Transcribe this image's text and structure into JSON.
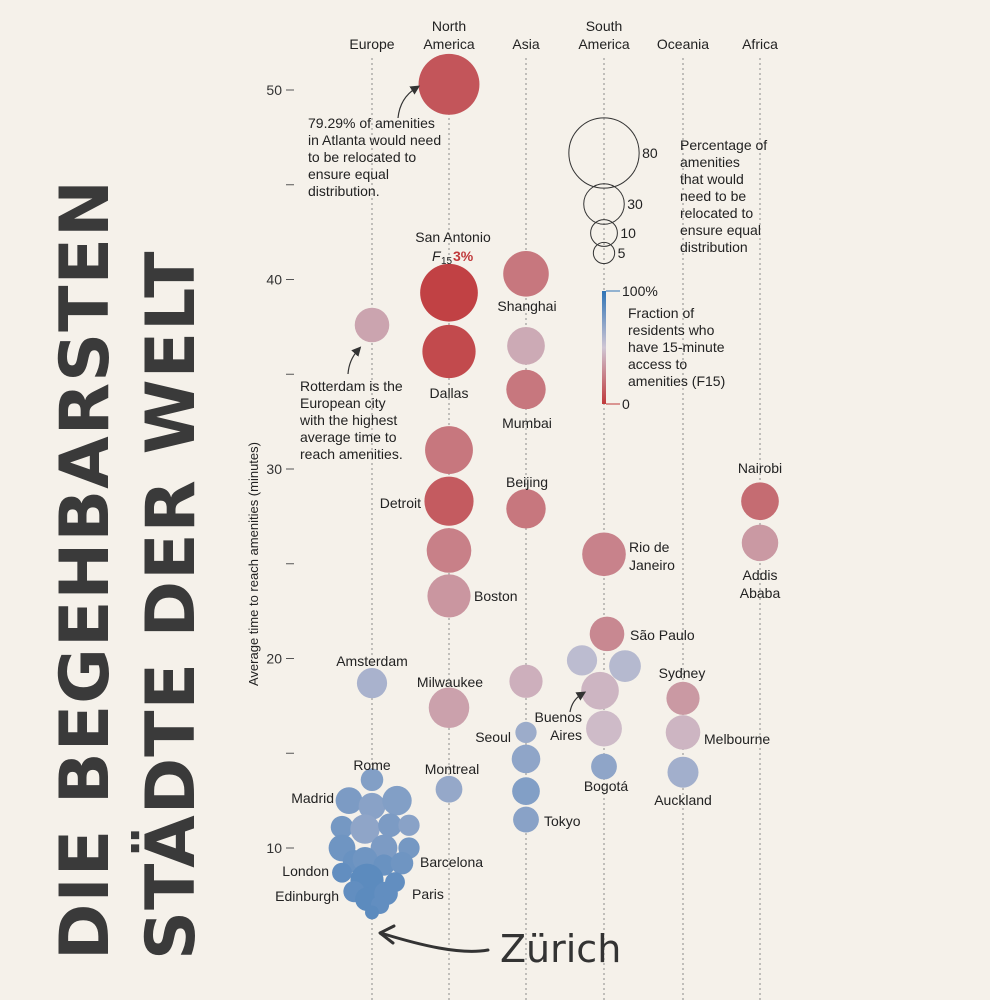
{
  "headline": {
    "line1": "DIE BEGEHBARSTEN",
    "line2": "STÄDTE DER WELT"
  },
  "chart_data": {
    "type": "scatter",
    "ylabel": "Average time to reach amenities (minutes)",
    "ylim": [
      7,
      53
    ],
    "yticks": [
      10,
      15,
      20,
      25,
      30,
      35,
      40,
      45,
      50
    ],
    "ytick_labels": {
      "10": "10",
      "20": "20",
      "30": "30",
      "40": "40",
      "50": "50"
    },
    "categories": [
      "Europe",
      "North America",
      "Asia",
      "South America",
      "Oceania",
      "Africa"
    ],
    "category_labels": [
      [
        "Europe"
      ],
      [
        "North",
        "America"
      ],
      [
        "Asia"
      ],
      [
        "South",
        "America"
      ],
      [
        "Oceania"
      ],
      [
        "Africa"
      ]
    ],
    "size_legend": {
      "title": [
        "Percentage of",
        "amenities",
        "that would",
        "need to be",
        "relocated to",
        "ensure equal",
        "distribution"
      ],
      "values": [
        80,
        30,
        10,
        5
      ]
    },
    "color_legend": {
      "title": [
        "Fraction of",
        "residents who",
        "have 15-minute",
        "access to",
        "amenities (F15)"
      ],
      "max_label": "100%",
      "min_label": "0",
      "colors": [
        "#2f74b6",
        "#cfc6d4",
        "#c0393b"
      ]
    },
    "annotations": {
      "atlanta": [
        "79.29% of amenities",
        "in Atlanta would need",
        "to be relocated to",
        "ensure equal",
        "distribution."
      ],
      "rotterdam": [
        "Rotterdam is the",
        "European city",
        "with the highest",
        "average time to",
        "reach amenities."
      ],
      "san_antonio": "San Antonio",
      "f15_prefix": "F",
      "f15_sub": "15",
      "f15_value": "3%",
      "zurich": "Zürich"
    },
    "points": [
      {
        "cat": 1,
        "dx": 0,
        "y": 50.3,
        "f15": 0.1,
        "pct": 79.29,
        "name": "",
        "label_dx": 0,
        "label_dy": 0
      },
      {
        "cat": 1,
        "dx": 0,
        "y": 39.3,
        "f15": 0.03,
        "pct": 70,
        "name": "",
        "label_dx": 0,
        "label_dy": 0
      },
      {
        "cat": 1,
        "dx": 0,
        "y": 36.2,
        "f15": 0.06,
        "pct": 58,
        "name": "Dallas",
        "label_dx": 0,
        "label_dy": 0
      },
      {
        "cat": 1,
        "dx": 0,
        "y": 31.0,
        "f15": 0.22,
        "pct": 45,
        "name": "",
        "label_dx": 0,
        "label_dy": 0
      },
      {
        "cat": 1,
        "dx": 0,
        "y": 28.3,
        "f15": 0.12,
        "pct": 48,
        "name": "Detroit",
        "label_dx": 0,
        "label_dy": 0
      },
      {
        "cat": 1,
        "dx": 0,
        "y": 25.7,
        "f15": 0.25,
        "pct": 38,
        "name": "",
        "label_dx": 0,
        "label_dy": 0
      },
      {
        "cat": 1,
        "dx": 0,
        "y": 23.3,
        "f15": 0.33,
        "pct": 35,
        "name": "Boston",
        "label_dx": 0,
        "label_dy": 0
      },
      {
        "cat": 1,
        "dx": 0,
        "y": 17.4,
        "f15": 0.37,
        "pct": 30,
        "name": "Milwaukee",
        "label_dx": 0,
        "label_dy": 0
      },
      {
        "cat": 1,
        "dx": 0,
        "y": 13.1,
        "f15": 0.68,
        "pct": 10,
        "name": "Montreal",
        "label_dx": 0,
        "label_dy": 0
      },
      {
        "cat": 0,
        "dx": 0,
        "y": 37.6,
        "f15": 0.38,
        "pct": 20,
        "name": "",
        "label_dx": 0,
        "label_dy": 0
      },
      {
        "cat": 0,
        "dx": 0,
        "y": 18.7,
        "f15": 0.62,
        "pct": 14,
        "name": "Amsterdam",
        "label_dx": 0,
        "label_dy": 0
      },
      {
        "cat": 0,
        "dx": 0,
        "y": 13.6,
        "f15": 0.74,
        "pct": 6,
        "name": "Rome",
        "label_dx": 0,
        "label_dy": 0
      },
      {
        "cat": 0,
        "dx": -23,
        "y": 12.5,
        "f15": 0.76,
        "pct": 10,
        "name": "Madrid",
        "label_dx": 0,
        "label_dy": 0
      },
      {
        "cat": 0,
        "dx": 0,
        "y": 12.2,
        "f15": 0.72,
        "pct": 10,
        "name": "",
        "label_dx": 0,
        "label_dy": 0
      },
      {
        "cat": 0,
        "dx": 25,
        "y": 12.5,
        "f15": 0.74,
        "pct": 13,
        "name": "",
        "label_dx": 0,
        "label_dy": 0
      },
      {
        "cat": 0,
        "dx": -30,
        "y": 11.1,
        "f15": 0.78,
        "pct": 6,
        "name": "",
        "label_dx": 0,
        "label_dy": 0
      },
      {
        "cat": 0,
        "dx": -7,
        "y": 11.0,
        "f15": 0.7,
        "pct": 13,
        "name": "",
        "label_dx": 0,
        "label_dy": 0
      },
      {
        "cat": 0,
        "dx": 18,
        "y": 11.2,
        "f15": 0.76,
        "pct": 7,
        "name": "",
        "label_dx": 0,
        "label_dy": 0
      },
      {
        "cat": 0,
        "dx": 37,
        "y": 11.2,
        "f15": 0.72,
        "pct": 5,
        "name": "",
        "label_dx": 0,
        "label_dy": 0
      },
      {
        "cat": 0,
        "dx": -30,
        "y": 10.0,
        "f15": 0.8,
        "pct": 10,
        "name": "",
        "label_dx": 0,
        "label_dy": 0
      },
      {
        "cat": 0,
        "dx": 12,
        "y": 10.0,
        "f15": 0.76,
        "pct": 10,
        "name": "",
        "label_dx": 0,
        "label_dy": 0
      },
      {
        "cat": 0,
        "dx": 37,
        "y": 10.0,
        "f15": 0.78,
        "pct": 5,
        "name": "",
        "label_dx": 0,
        "label_dy": 0
      },
      {
        "cat": 0,
        "dx": -18,
        "y": 9.3,
        "f15": 0.82,
        "pct": 6,
        "name": "",
        "label_dx": 0,
        "label_dy": 0
      },
      {
        "cat": 0,
        "dx": -7,
        "y": 9.4,
        "f15": 0.8,
        "pct": 8,
        "name": "",
        "label_dx": 0,
        "label_dy": 0
      },
      {
        "cat": 0,
        "dx": 12,
        "y": 9.1,
        "f15": 0.82,
        "pct": 5,
        "name": "",
        "label_dx": 0,
        "label_dy": 0
      },
      {
        "cat": 0,
        "dx": 30,
        "y": 9.2,
        "f15": 0.8,
        "pct": 6,
        "name": "Barcelona",
        "label_dx": 0,
        "label_dy": 0
      },
      {
        "cat": 0,
        "dx": -30,
        "y": 8.7,
        "f15": 0.84,
        "pct": 4,
        "name": "London",
        "label_dx": 0,
        "label_dy": 0
      },
      {
        "cat": 0,
        "dx": -5,
        "y": 8.3,
        "f15": 0.86,
        "pct": 18,
        "name": "Edinburgh",
        "label_dx": 0,
        "label_dy": 0
      },
      {
        "cat": 0,
        "dx": 23,
        "y": 8.2,
        "f15": 0.84,
        "pct": 4,
        "name": "Paris",
        "label_dx": 0,
        "label_dy": 0
      },
      {
        "cat": 0,
        "dx": -18,
        "y": 7.7,
        "f15": 0.84,
        "pct": 5,
        "name": "",
        "label_dx": 0,
        "label_dy": 0
      },
      {
        "cat": 0,
        "dx": -5,
        "y": 7.3,
        "f15": 0.86,
        "pct": 7,
        "name": "",
        "label_dx": 0,
        "label_dy": 0
      },
      {
        "cat": 0,
        "dx": 14,
        "y": 7.6,
        "f15": 0.84,
        "pct": 7,
        "name": "",
        "label_dx": 0,
        "label_dy": 0
      },
      {
        "cat": 0,
        "dx": 8,
        "y": 7.0,
        "f15": 0.84,
        "pct": 3,
        "name": "",
        "label_dx": 0,
        "label_dy": 0
      },
      {
        "cat": 0,
        "dx": 0,
        "y": 6.6,
        "f15": 0.86,
        "pct": 1,
        "name": "",
        "label_dx": 0,
        "label_dy": 0
      },
      {
        "cat": 2,
        "dx": 0,
        "y": 40.3,
        "f15": 0.22,
        "pct": 40,
        "name": "Shanghai",
        "label_dx": 0,
        "label_dy": 0
      },
      {
        "cat": 2,
        "dx": 0,
        "y": 36.5,
        "f15": 0.4,
        "pct": 25,
        "name": "",
        "label_dx": 0,
        "label_dy": 0
      },
      {
        "cat": 2,
        "dx": 0,
        "y": 34.2,
        "f15": 0.22,
        "pct": 28,
        "name": "Mumbai",
        "label_dx": 0,
        "label_dy": 0
      },
      {
        "cat": 2,
        "dx": 0,
        "y": 27.9,
        "f15": 0.22,
        "pct": 28,
        "name": "Beijing",
        "label_dx": 0,
        "label_dy": 0
      },
      {
        "cat": 2,
        "dx": 0,
        "y": 18.8,
        "f15": 0.42,
        "pct": 18,
        "name": "",
        "label_dx": 0,
        "label_dy": 0
      },
      {
        "cat": 2,
        "dx": 0,
        "y": 16.1,
        "f15": 0.66,
        "pct": 5,
        "name": "Seoul",
        "label_dx": 0,
        "label_dy": 0
      },
      {
        "cat": 2,
        "dx": 0,
        "y": 14.7,
        "f15": 0.7,
        "pct": 12,
        "name": "",
        "label_dx": 0,
        "label_dy": 0
      },
      {
        "cat": 2,
        "dx": 0,
        "y": 13.0,
        "f15": 0.74,
        "pct": 11,
        "name": "",
        "label_dx": 0,
        "label_dy": 0
      },
      {
        "cat": 2,
        "dx": 0,
        "y": 11.5,
        "f15": 0.72,
        "pct": 9,
        "name": "Tokyo",
        "label_dx": 0,
        "label_dy": 0
      },
      {
        "cat": 3,
        "dx": 0,
        "y": 25.5,
        "f15": 0.26,
        "pct": 36,
        "name": "Rio de Janeiro",
        "label_dx": 0,
        "label_dy": 0
      },
      {
        "cat": 3,
        "dx": 3,
        "y": 21.3,
        "f15": 0.28,
        "pct": 20,
        "name": "São Paulo",
        "label_dx": 0,
        "label_dy": 0
      },
      {
        "cat": 3,
        "dx": -22,
        "y": 19.9,
        "f15": 0.56,
        "pct": 14,
        "name": "",
        "label_dx": 0,
        "label_dy": 0
      },
      {
        "cat": 3,
        "dx": 21,
        "y": 19.6,
        "f15": 0.58,
        "pct": 16,
        "name": "",
        "label_dx": 0,
        "label_dy": 0
      },
      {
        "cat": 3,
        "dx": -4,
        "y": 18.3,
        "f15": 0.44,
        "pct": 25,
        "name": "Buenos Aires",
        "label_dx": 0,
        "label_dy": 0
      },
      {
        "cat": 3,
        "dx": 0,
        "y": 16.3,
        "f15": 0.46,
        "pct": 22,
        "name": "",
        "label_dx": 0,
        "label_dy": 0
      },
      {
        "cat": 3,
        "dx": 0,
        "y": 14.3,
        "f15": 0.7,
        "pct": 9,
        "name": "Bogotá",
        "label_dx": 0,
        "label_dy": 0
      },
      {
        "cat": 4,
        "dx": 0,
        "y": 17.9,
        "f15": 0.34,
        "pct": 18,
        "name": "Sydney",
        "label_dx": 0,
        "label_dy": 0
      },
      {
        "cat": 4,
        "dx": 0,
        "y": 16.1,
        "f15": 0.44,
        "pct": 20,
        "name": "Melbourne",
        "label_dx": 0,
        "label_dy": 0
      },
      {
        "cat": 4,
        "dx": 0,
        "y": 14.0,
        "f15": 0.64,
        "pct": 15,
        "name": "Auckland",
        "label_dx": 0,
        "label_dy": 0
      },
      {
        "cat": 5,
        "dx": 0,
        "y": 28.3,
        "f15": 0.18,
        "pct": 25,
        "name": "Nairobi",
        "label_dx": 0,
        "label_dy": 0
      },
      {
        "cat": 5,
        "dx": 0,
        "y": 26.1,
        "f15": 0.34,
        "pct": 23,
        "name": "Addis Ababa",
        "label_dx": 0,
        "label_dy": 0
      }
    ]
  }
}
